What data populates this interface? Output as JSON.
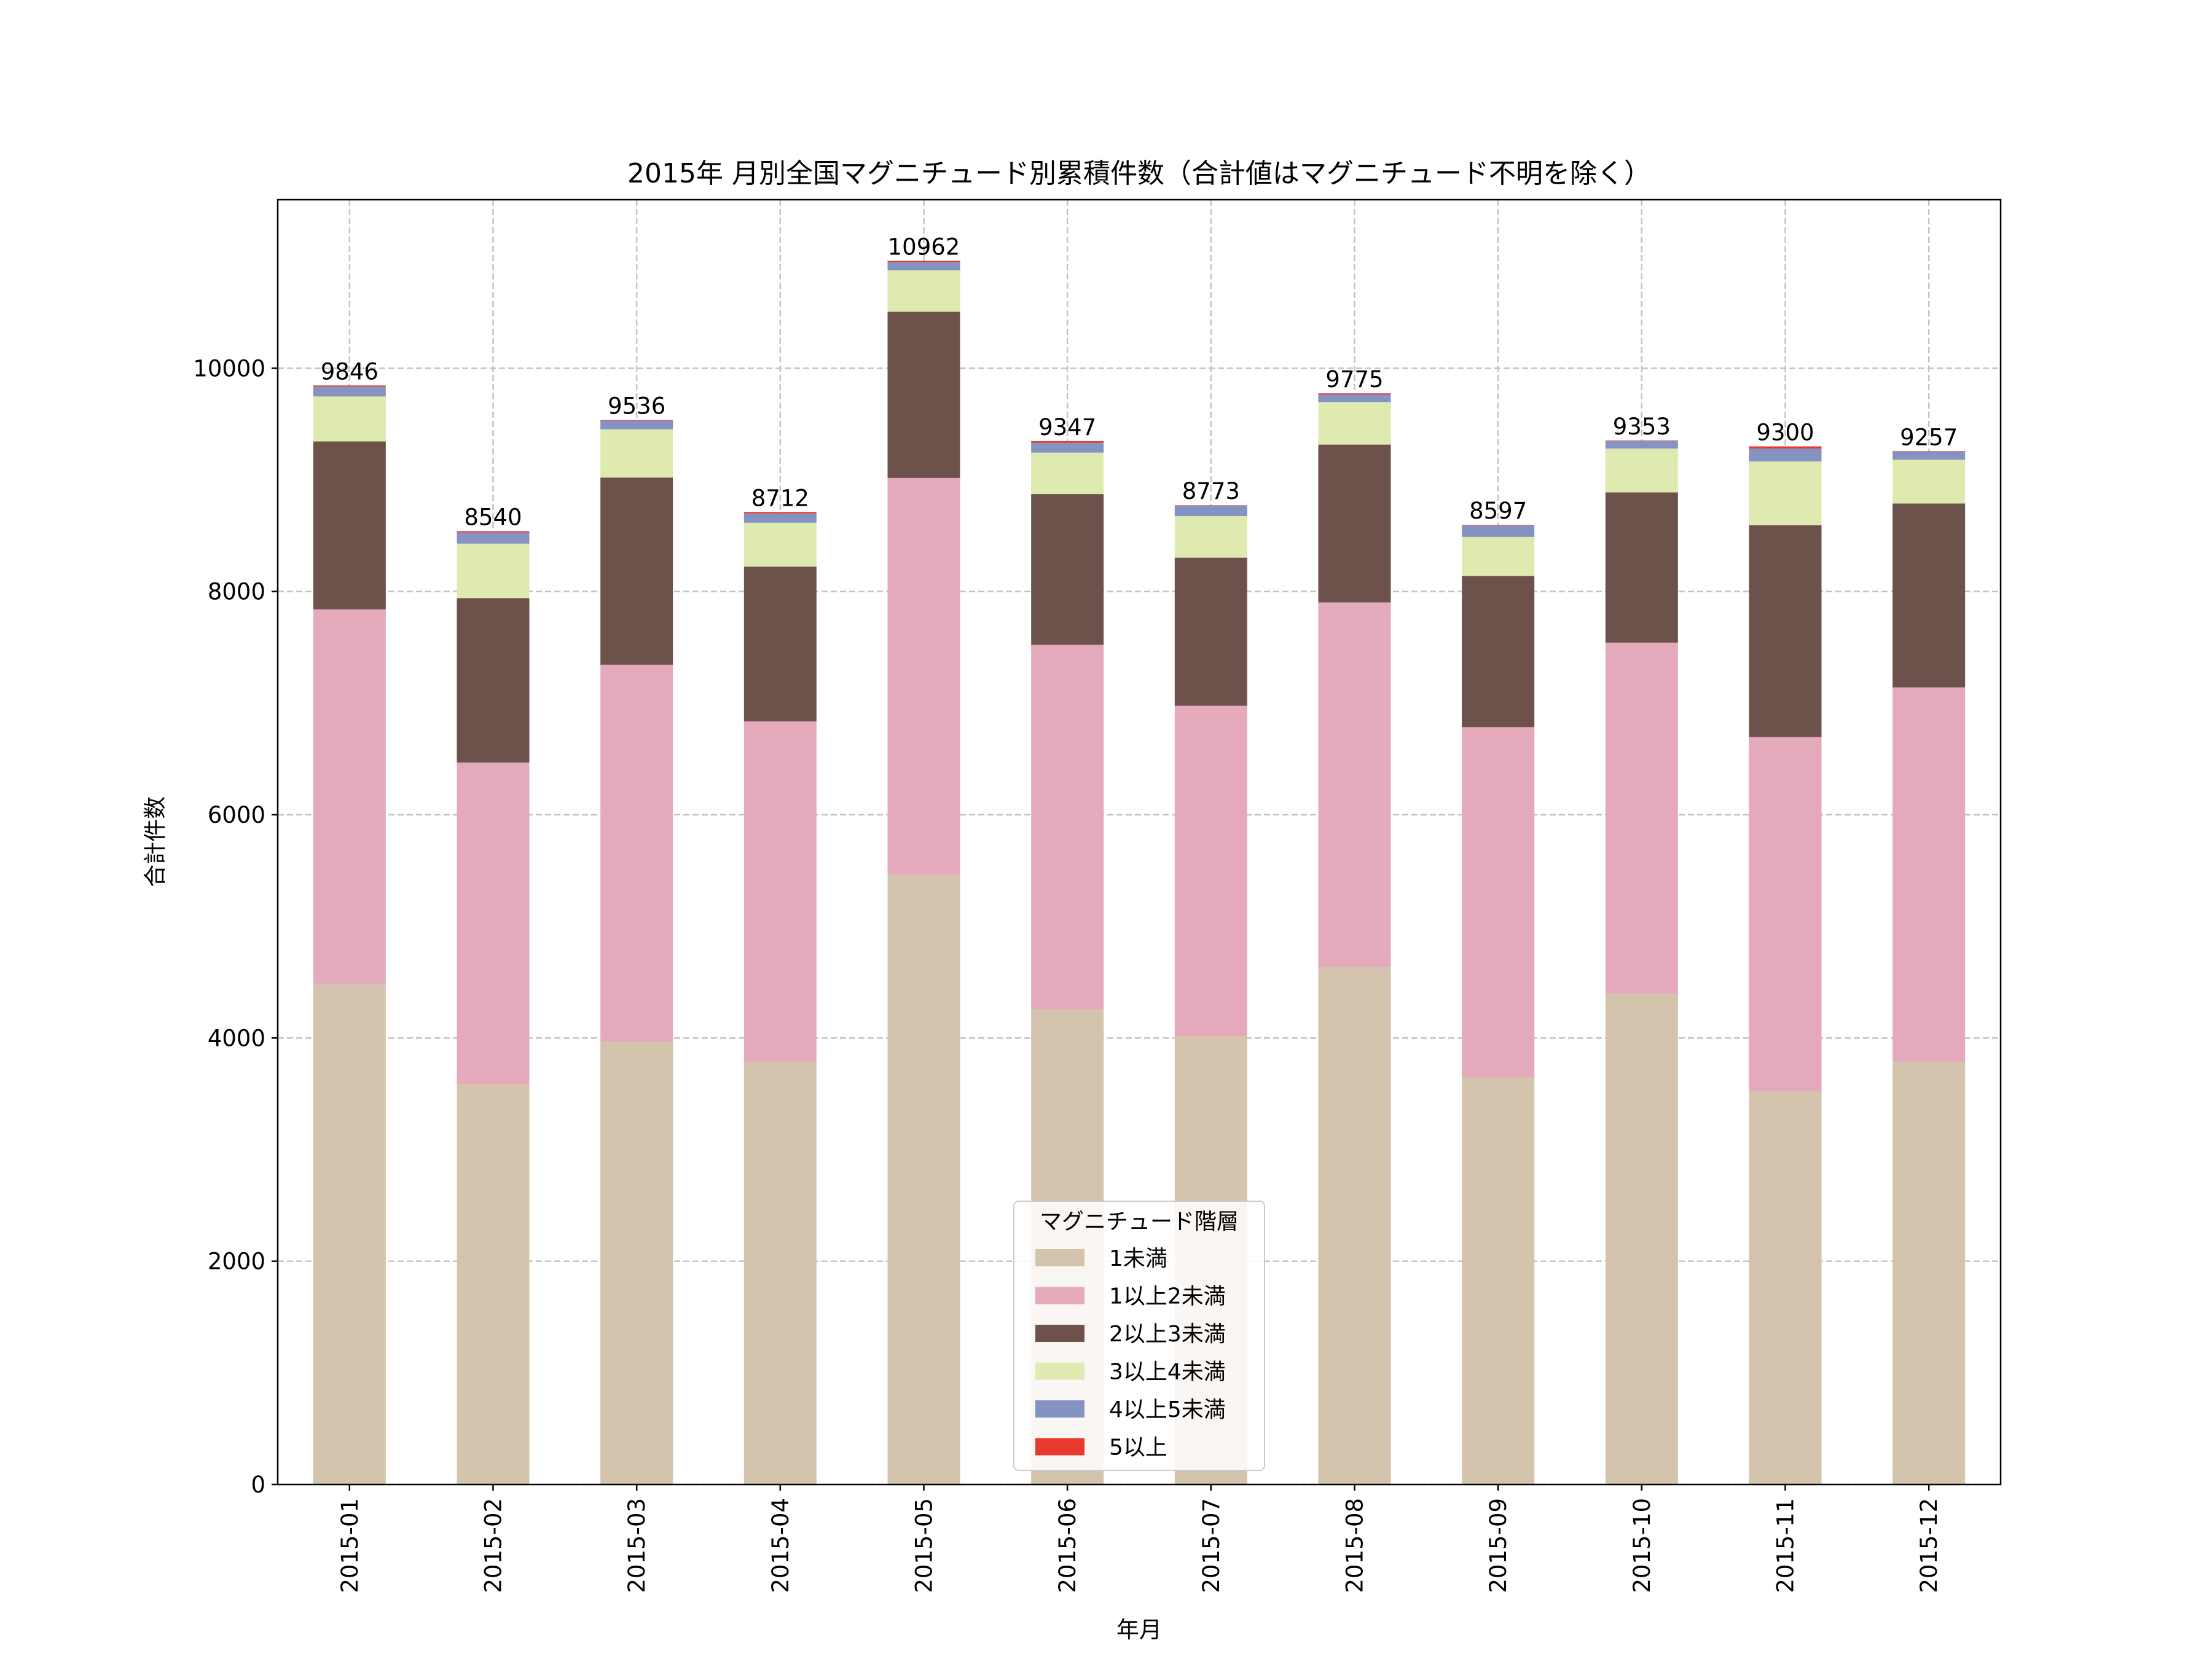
{
  "chart_data": {
    "type": "bar",
    "stacked": true,
    "title": "2015年 月別全国マグニチュード別累積件数（合計値はマグニチュード不明を除く）",
    "xlabel": "年月",
    "ylabel": "合計件数",
    "ylim": [
      0,
      11510
    ],
    "yticks": [
      0,
      2000,
      4000,
      6000,
      8000,
      10000
    ],
    "grid": true,
    "legend": {
      "title": "マグニチュード階層",
      "placement": "bottom-center"
    },
    "categories": [
      "2015-01",
      "2015-02",
      "2015-03",
      "2015-04",
      "2015-05",
      "2015-06",
      "2015-07",
      "2015-08",
      "2015-09",
      "2015-10",
      "2015-11",
      "2015-12"
    ],
    "series": [
      {
        "name": "1未満",
        "color": "#d5c4ad",
        "values": [
          4485,
          3583,
          3964,
          3787,
          5464,
          4257,
          4015,
          4638,
          3647,
          4396,
          3520,
          3787
        ]
      },
      {
        "name": "1以上2未満",
        "color": "#e4aabc",
        "values": [
          3355,
          2885,
          3380,
          3049,
          3553,
          3265,
          2961,
          3264,
          3138,
          3146,
          3176,
          3354
        ]
      },
      {
        "name": "2以上3未満",
        "color": "#6d524c",
        "values": [
          1504,
          1473,
          1677,
          1387,
          1489,
          1351,
          1327,
          1414,
          1355,
          1346,
          1898,
          1647
        ]
      },
      {
        "name": "3以上4未満",
        "color": "#dfeab0",
        "values": [
          403,
          488,
          432,
          393,
          371,
          371,
          372,
          381,
          349,
          393,
          571,
          393
        ]
      },
      {
        "name": "4以上5未満",
        "color": "#8593c2",
        "values": [
          89,
          100,
          78,
          83,
          74,
          89,
          95,
          68,
          102,
          66,
          116,
          72
        ]
      },
      {
        "name": "5以上",
        "color": "#e8392d",
        "values": [
          10,
          11,
          5,
          13,
          11,
          14,
          3,
          10,
          6,
          6,
          19,
          4
        ]
      }
    ],
    "totals": [
      "9846",
      "8540",
      "9536",
      "8712",
      "10962",
      "9347",
      "8773",
      "9775",
      "8597",
      "9353",
      "9300",
      "9257"
    ]
  }
}
